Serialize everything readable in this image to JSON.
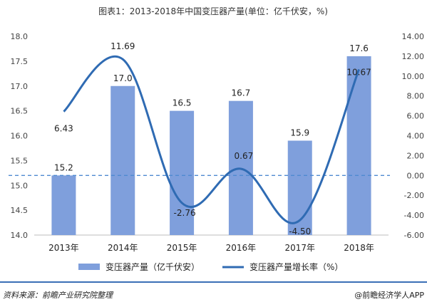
{
  "chart_data": {
    "type": "bar",
    "title": "图表1：2013-2018年中国变压器产量(单位：亿千伏安，%)",
    "categories": [
      "2013年",
      "2014年",
      "2015年",
      "2016年",
      "2017年",
      "2018年"
    ],
    "series": [
      {
        "name": "变压器产量（亿千伏安）",
        "type": "bar",
        "axis": "left",
        "values": [
          15.2,
          17.0,
          16.5,
          16.7,
          15.9,
          17.6
        ],
        "color": "#7f9fdc"
      },
      {
        "name": "变压器产量增长率（%）",
        "type": "line",
        "axis": "right",
        "values": [
          6.43,
          11.69,
          -2.76,
          0.67,
          -4.5,
          10.67
        ],
        "color": "#2f6bb3",
        "labels": [
          "6.43",
          "11.69",
          "-2.76",
          "0.67",
          "-4.50",
          "10.67"
        ]
      }
    ],
    "left_axis": {
      "ylim": [
        14.0,
        18.0
      ],
      "ticks": [
        "14.0",
        "14.5",
        "15.0",
        "15.5",
        "16.0",
        "16.5",
        "17.0",
        "17.5",
        "18.0"
      ]
    },
    "right_axis": {
      "ylim": [
        -6.0,
        14.0
      ],
      "ticks": [
        "-6.00",
        "-4.00",
        "-2.00",
        "0.00",
        "2.00",
        "4.00",
        "6.00",
        "8.00",
        "10.00",
        "12.00",
        "14.00"
      ]
    },
    "reference_line": {
      "axis": "right",
      "value": 0.0,
      "style": "dashed"
    },
    "legend_position": "bottom",
    "grid": false
  },
  "footer": {
    "source": "资料来源：前瞻产业研究院整理",
    "brand": "@前瞻经济学人APP"
  }
}
